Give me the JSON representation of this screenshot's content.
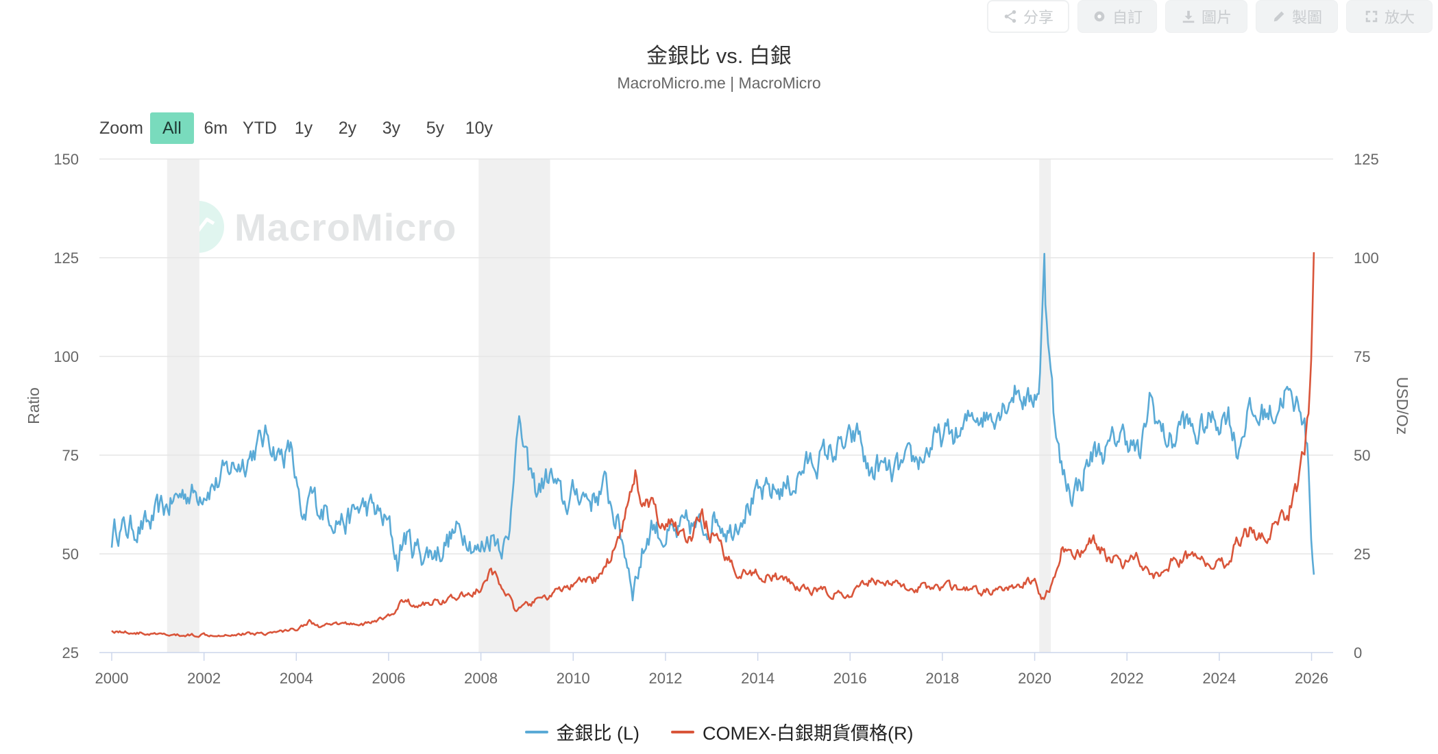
{
  "toolbar": [
    {
      "label": "分享",
      "icon": "share-icon",
      "key": "share"
    },
    {
      "label": "自訂",
      "icon": "gear-icon",
      "key": "customize"
    },
    {
      "label": "圖片",
      "icon": "download-icon",
      "key": "image"
    },
    {
      "label": "製圖",
      "icon": "pencil-icon",
      "key": "draw"
    },
    {
      "label": "放大",
      "icon": "expand-icon",
      "key": "enlarge"
    }
  ],
  "zoom": {
    "label": "Zoom",
    "options": [
      "All",
      "6m",
      "YTD",
      "1y",
      "2y",
      "3y",
      "5y",
      "10y"
    ],
    "active": "All"
  },
  "watermark": {
    "text": "MacroMicro"
  },
  "colors": {
    "blue": "#5aaad6",
    "red": "#d9553a",
    "band": "#f0f0f0",
    "grid": "#e6e6e6"
  },
  "chart_data": {
    "type": "line",
    "title": "金銀比 vs. 白銀",
    "subtitle": "MacroMicro.me | MacroMicro",
    "x_ticks": [
      "2000",
      "2002",
      "2004",
      "2006",
      "2008",
      "2010",
      "2012",
      "2014",
      "2016",
      "2018",
      "2020",
      "2022",
      "2024",
      "2026"
    ],
    "x_range": [
      2000.0,
      2026.2
    ],
    "y_left": {
      "label": "Ratio",
      "range": [
        25,
        150
      ],
      "ticks": [
        25,
        50,
        75,
        100,
        125,
        150
      ]
    },
    "y_right": {
      "label": "USD/Oz",
      "range": [
        0,
        125
      ],
      "ticks": [
        0,
        25,
        50,
        75,
        100,
        125
      ]
    },
    "grid": true,
    "recession_bands": [
      [
        2001.2,
        2001.9
      ],
      [
        2007.95,
        2009.5
      ],
      [
        2020.1,
        2020.35
      ]
    ],
    "series": [
      {
        "name": "金銀比 (L)",
        "axis": "left",
        "color": "#5aaad6",
        "x": [
          2000.0,
          2000.1,
          2000.3,
          2000.5,
          2000.8,
          2001.0,
          2001.2,
          2001.4,
          2001.6,
          2001.8,
          2002.0,
          2002.3,
          2002.6,
          2002.9,
          2003.2,
          2003.4,
          2003.6,
          2003.9,
          2004.0,
          2004.15,
          2004.3,
          2004.5,
          2004.8,
          2005.1,
          2005.4,
          2005.7,
          2006.0,
          2006.2,
          2006.35,
          2006.5,
          2006.8,
          2007.1,
          2007.4,
          2007.7,
          2007.95,
          2008.2,
          2008.4,
          2008.6,
          2008.75,
          2008.85,
          2009.0,
          2009.2,
          2009.5,
          2009.8,
          2010.1,
          2010.4,
          2010.7,
          2010.9,
          2011.1,
          2011.3,
          2011.5,
          2011.7,
          2011.9,
          2012.2,
          2012.5,
          2012.8,
          2013.1,
          2013.4,
          2013.7,
          2014.0,
          2014.4,
          2014.8,
          2015.0,
          2015.3,
          2015.6,
          2015.9,
          2016.2,
          2016.4,
          2016.6,
          2016.9,
          2017.2,
          2017.5,
          2017.8,
          2018.1,
          2018.4,
          2018.7,
          2019.0,
          2019.3,
          2019.6,
          2019.9,
          2020.1,
          2020.2,
          2020.25,
          2020.35,
          2020.45,
          2020.6,
          2020.8,
          2021.0,
          2021.1,
          2021.3,
          2021.6,
          2021.8,
          2022.0,
          2022.3,
          2022.5,
          2022.65,
          2022.8,
          2023.0,
          2023.2,
          2023.5,
          2023.8,
          2024.0,
          2024.2,
          2024.4,
          2024.6,
          2024.8,
          2025.0,
          2025.2,
          2025.3,
          2025.45,
          2025.6,
          2025.75,
          2025.85,
          2025.95,
          2026.0,
          2026.05
        ],
        "values": [
          54,
          57,
          56,
          57,
          57,
          60,
          62,
          64,
          66,
          65,
          67,
          68,
          72,
          74,
          78,
          80,
          75,
          76,
          68,
          54,
          65,
          62,
          60,
          58,
          62,
          61,
          57,
          48,
          55,
          52,
          50,
          51,
          55,
          56,
          50,
          55,
          54,
          52,
          80,
          82,
          72,
          66,
          70,
          62,
          66,
          64,
          67,
          60,
          52,
          42,
          50,
          58,
          55,
          54,
          57,
          56,
          60,
          56,
          62,
          64,
          66,
          68,
          72,
          74,
          76,
          77,
          80,
          70,
          72,
          70,
          72,
          74,
          78,
          80,
          80,
          86,
          85,
          88,
          92,
          88,
          93,
          120,
          110,
          100,
          80,
          70,
          66,
          68,
          72,
          76,
          76,
          80,
          80,
          74,
          90,
          84,
          80,
          78,
          84,
          80,
          84,
          84,
          86,
          76,
          86,
          84,
          86,
          86,
          88,
          92,
          86,
          89,
          83,
          70,
          52,
          46
        ],
        "peaks": [
          {
            "x": 2020.21,
            "y": 126
          }
        ]
      },
      {
        "name": "COMEX-白銀期貨價格(R)",
        "axis": "right",
        "color": "#d9553a",
        "x": [
          2000.0,
          2000.5,
          2001.0,
          2001.5,
          2002.0,
          2002.5,
          2003.0,
          2003.5,
          2004.0,
          2004.3,
          2004.5,
          2005.0,
          2005.5,
          2006.0,
          2006.35,
          2006.6,
          2007.0,
          2007.5,
          2008.0,
          2008.2,
          2008.5,
          2008.75,
          2009.0,
          2009.5,
          2010.0,
          2010.5,
          2010.8,
          2011.0,
          2011.2,
          2011.33,
          2011.5,
          2011.7,
          2011.9,
          2012.2,
          2012.5,
          2012.8,
          2013.0,
          2013.3,
          2013.6,
          2014.0,
          2014.5,
          2015.0,
          2015.5,
          2016.0,
          2016.5,
          2017.0,
          2017.5,
          2018.0,
          2018.5,
          2019.0,
          2019.5,
          2019.8,
          2020.0,
          2020.2,
          2020.4,
          2020.6,
          2020.8,
          2021.0,
          2021.3,
          2021.6,
          2021.9,
          2022.2,
          2022.5,
          2022.7,
          2023.0,
          2023.3,
          2023.6,
          2023.9,
          2024.2,
          2024.4,
          2024.7,
          2025.0,
          2025.3,
          2025.5,
          2025.7,
          2025.85,
          2025.95,
          2026.0,
          2026.05
        ],
        "values": [
          5.5,
          5.0,
          4.5,
          4.3,
          4.6,
          4.6,
          4.8,
          5.0,
          6.0,
          8.0,
          6.5,
          7.3,
          7.3,
          9.0,
          13.5,
          11.5,
          13.0,
          13.8,
          16.0,
          20.0,
          17.0,
          10.0,
          12.0,
          14.5,
          17.0,
          18.5,
          24.0,
          30.0,
          38.0,
          47.0,
          36.0,
          38.0,
          30.0,
          33.0,
          28.0,
          34.0,
          30.0,
          24.0,
          20.5,
          20.0,
          18.5,
          16.0,
          15.5,
          14.0,
          19.0,
          17.0,
          16.5,
          16.8,
          15.8,
          15.5,
          16.0,
          17.5,
          18.0,
          13.0,
          18.0,
          27.0,
          24.5,
          26.0,
          28.0,
          24.5,
          23.0,
          24.0,
          21.0,
          19.0,
          23.5,
          24.0,
          23.5,
          22.5,
          23.0,
          29.0,
          31.0,
          30.0,
          33.0,
          36.0,
          43.0,
          52.0,
          65.0,
          80.0,
          108.0
        ]
      }
    ]
  }
}
